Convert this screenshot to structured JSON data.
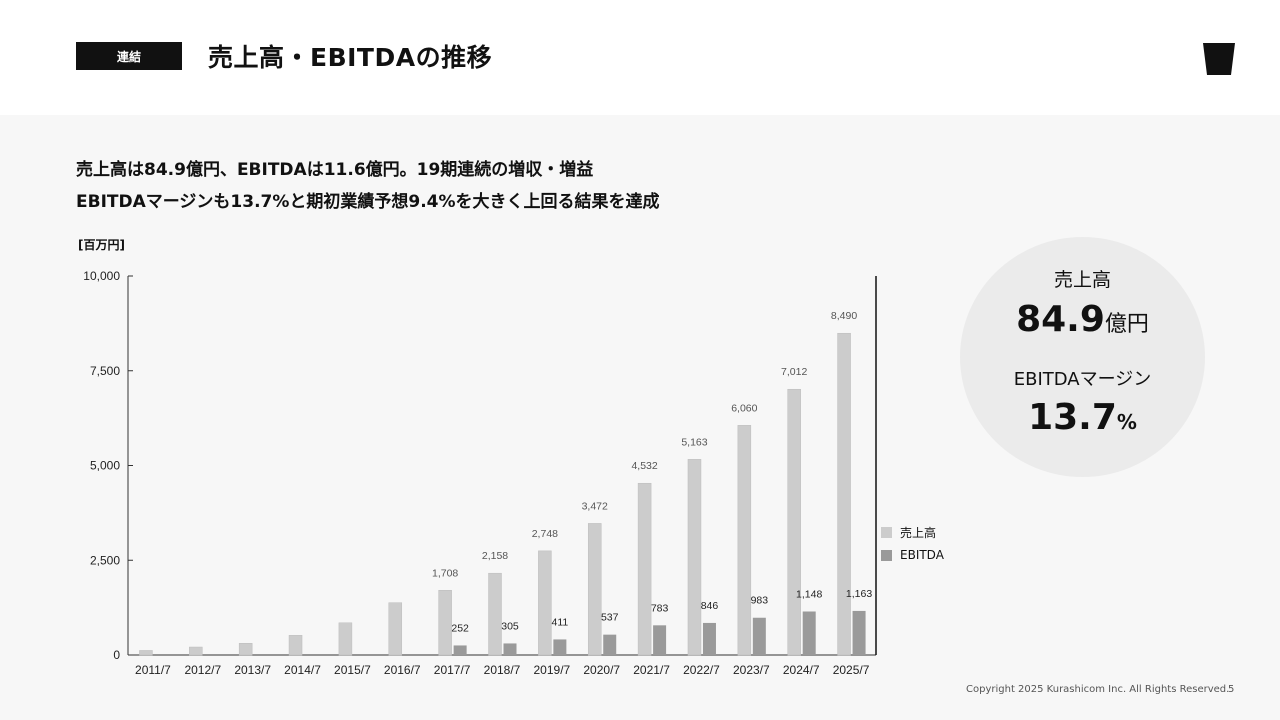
{
  "header": {
    "tag": "連結",
    "title": "売上高・EBITDAの推移"
  },
  "lead": {
    "line1": "売上高は84.9億円、EBITDAは11.6億円。19期連続の増収・増益",
    "line2": "EBITDAマージンも13.7%と期初業績予想9.4%を大きく上回る結果を達成"
  },
  "highlight": {
    "label1": "売上高",
    "value1": "84.9",
    "unit1": "億円",
    "label2": "EBITDAマージン",
    "value2": "13.7",
    "unit2": "%"
  },
  "chart_data": {
    "type": "bar",
    "unit_label": "[百万円]",
    "categories": [
      "2011/7",
      "2012/7",
      "2013/7",
      "2014/7",
      "2015/7",
      "2016/7",
      "2017/7",
      "2018/7",
      "2019/7",
      "2020/7",
      "2021/7",
      "2022/7",
      "2023/7",
      "2024/7",
      "2025/7"
    ],
    "series": [
      {
        "name": "売上高",
        "color": "#cccccc",
        "values": [
          120,
          210,
          310,
          520,
          850,
          1380,
          1708,
          2158,
          2748,
          3472,
          4532,
          5163,
          6060,
          7012,
          8490
        ],
        "labels": [
          "",
          "",
          "",
          "",
          "",
          "",
          "1,708",
          "2,158",
          "2,748",
          "3,472",
          "4,532",
          "5,163",
          "6,060",
          "7,012",
          "8,490"
        ]
      },
      {
        "name": "EBITDA",
        "color": "#9a9a9a",
        "values": [
          null,
          null,
          null,
          null,
          null,
          null,
          252,
          305,
          411,
          537,
          783,
          846,
          983,
          1148,
          1163
        ],
        "labels": [
          "",
          "",
          "",
          "",
          "",
          "",
          "252",
          "305",
          "411",
          "537",
          "783",
          "846",
          "983",
          "1,148",
          "1,163"
        ]
      }
    ],
    "y_ticks": [
      0,
      2500,
      5000,
      7500,
      10000
    ],
    "y_tick_labels": [
      "0",
      "2,500",
      "5,000",
      "7,500",
      "10,000"
    ],
    "ylim": [
      0,
      10000
    ],
    "legend": "right"
  },
  "footer": {
    "copyright": "Copyright 2025 Kurashicom Inc. All Rights Reserved.",
    "page": "5"
  }
}
